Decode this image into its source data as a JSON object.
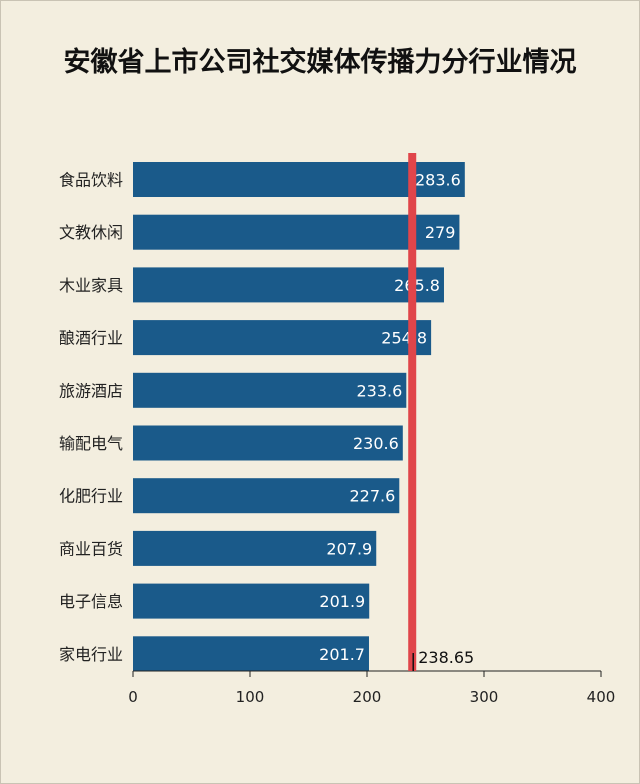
{
  "chart_data": {
    "type": "bar",
    "orientation": "horizontal",
    "title": "安徽省上市公司社交媒体传播力分行业情况",
    "categories": [
      "食品饮料",
      "文教休闲",
      "木业家具",
      "酿酒行业",
      "旅游酒店",
      "输配电气",
      "化肥行业",
      "商业百货",
      "电子信息",
      "家电行业"
    ],
    "values": [
      283.6,
      279,
      265.8,
      254.8,
      233.6,
      230.6,
      227.6,
      207.9,
      201.9,
      201.7
    ],
    "value_labels": [
      "283.6",
      "279",
      "265.8",
      "254.8",
      "233.6",
      "230.6",
      "227.6",
      "207.9",
      "201.9",
      "201.7"
    ],
    "xlim": [
      0,
      400
    ],
    "xticks": [
      "0",
      "100",
      "200",
      "300",
      "400"
    ],
    "reference_line": {
      "value": 238.65,
      "label": "238.65",
      "color": "#e0454a"
    },
    "bar_color": "#1a5a8a",
    "grid": false,
    "legend": "none"
  }
}
